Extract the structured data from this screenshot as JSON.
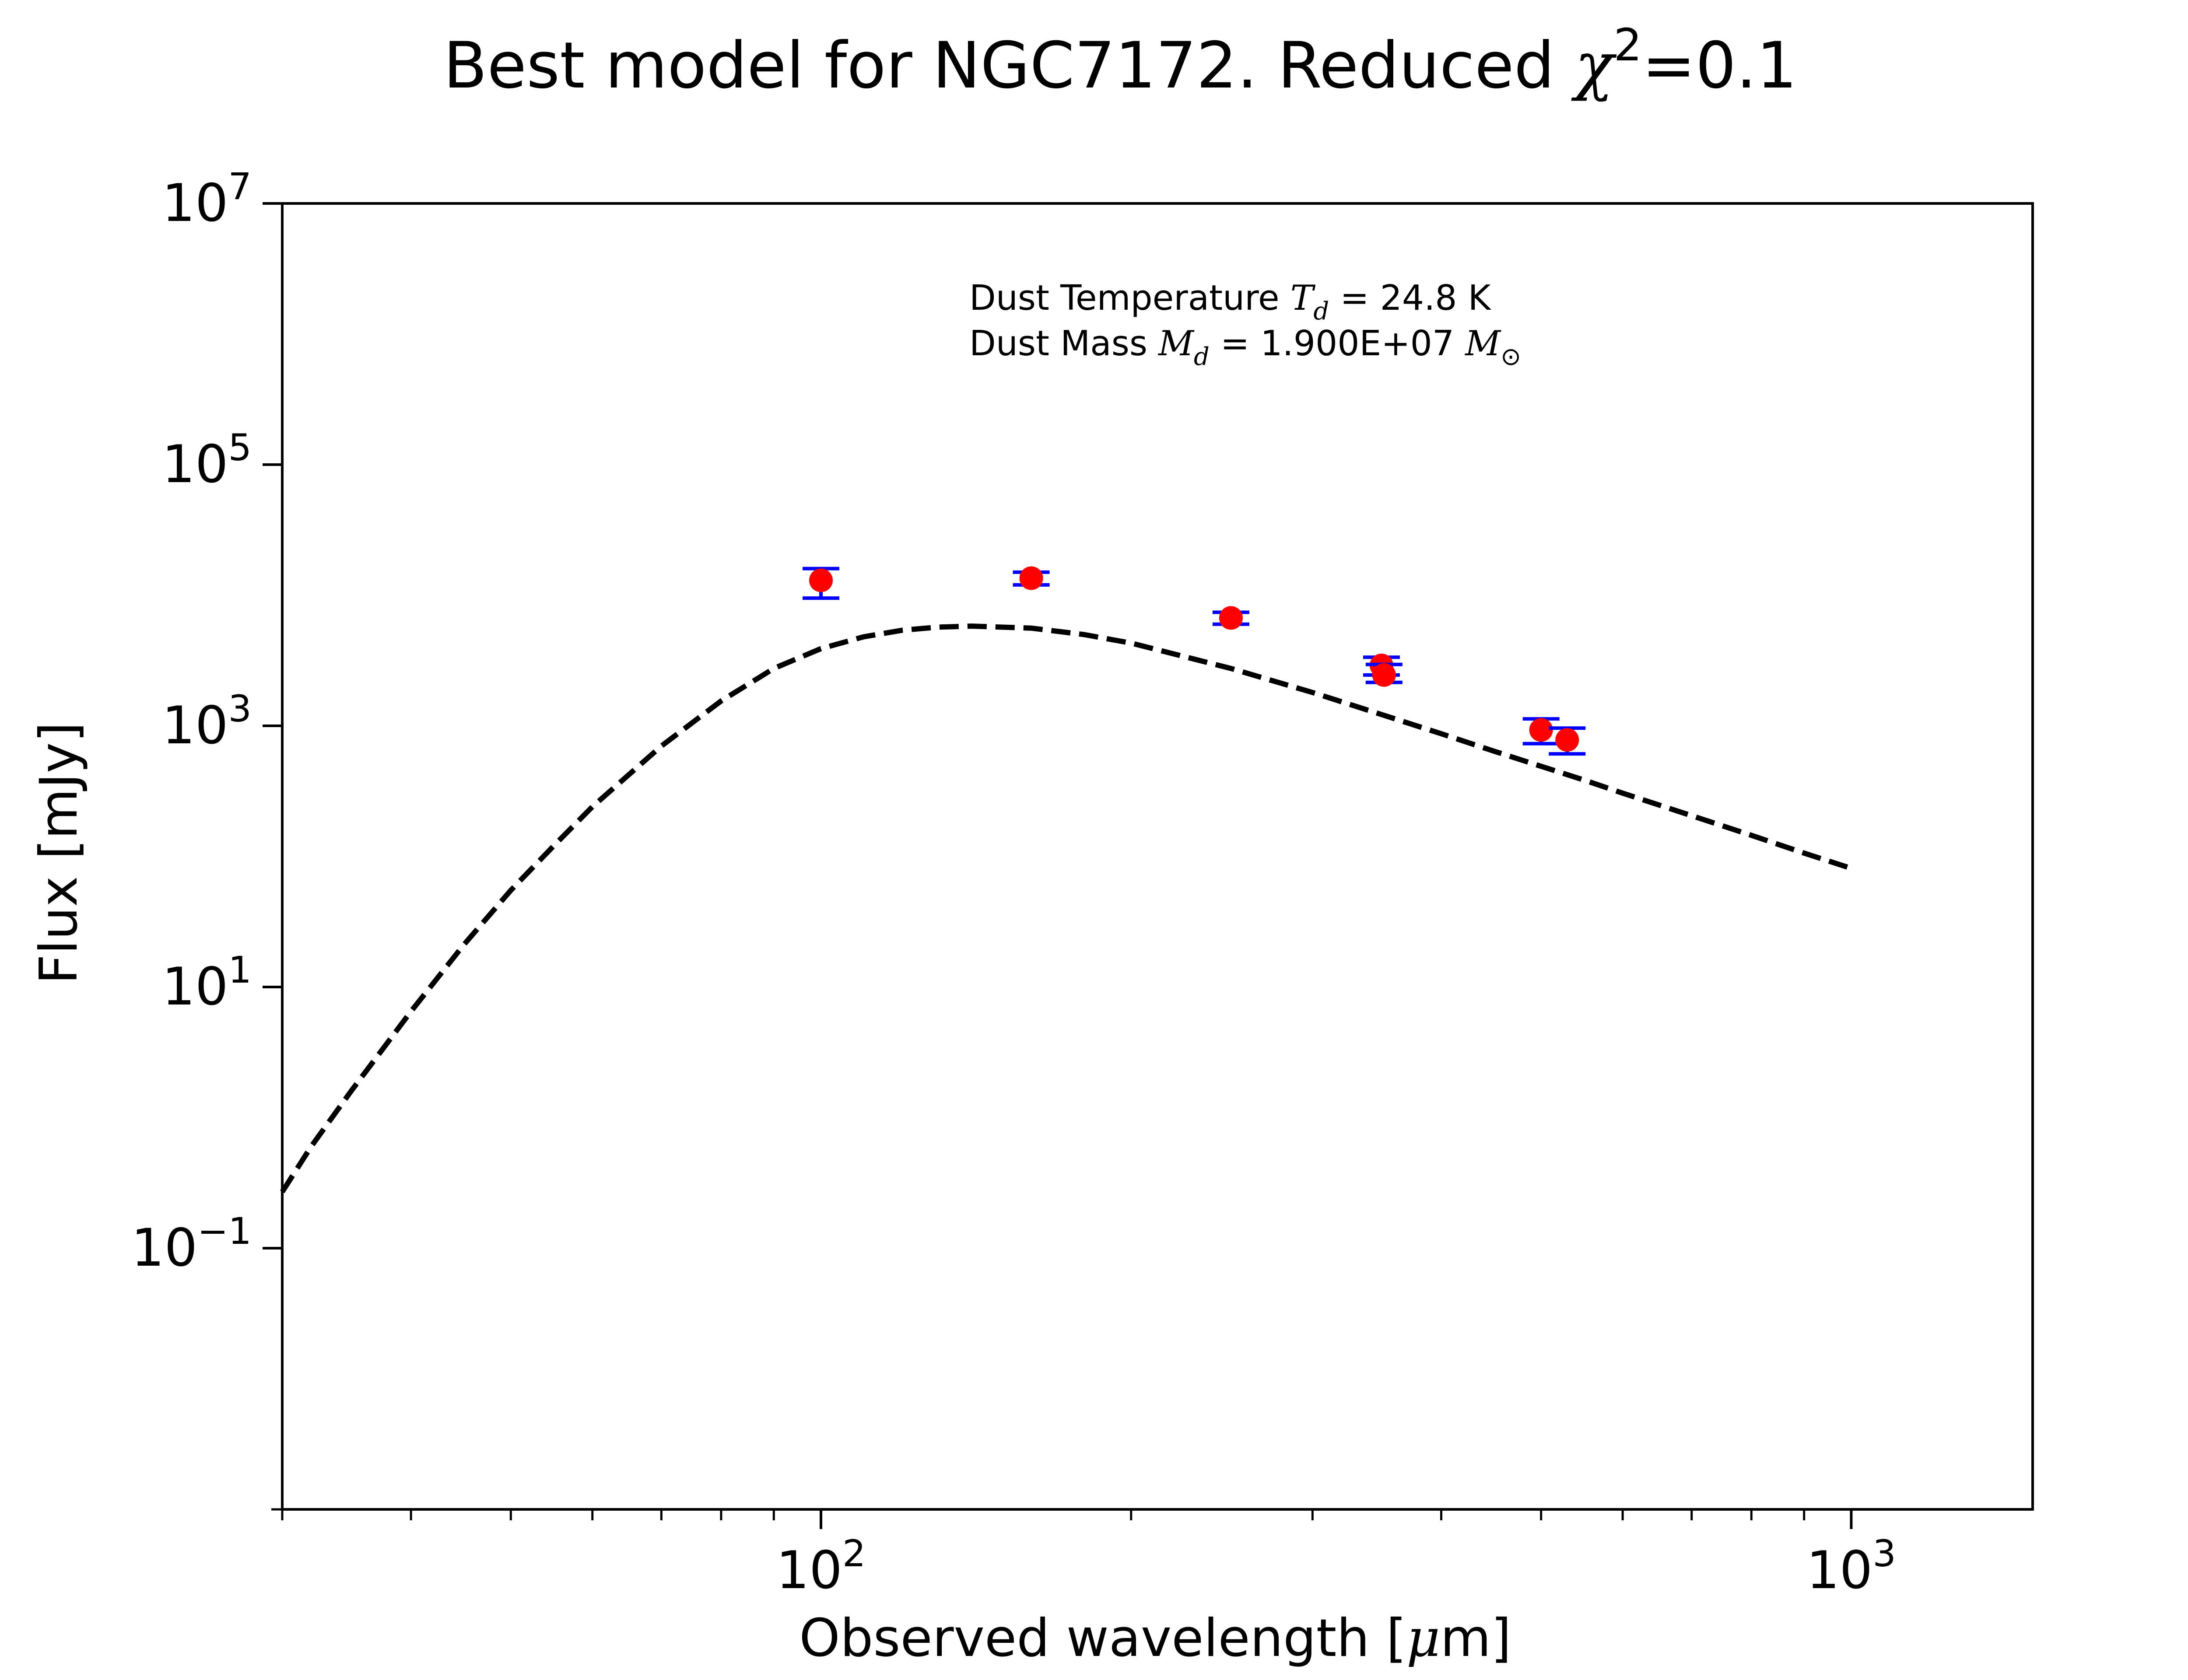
{
  "chart_data": {
    "type": "scatter",
    "title": {
      "main": "Best model for NGC7172. Reduced ",
      "chi_symbol": "χ",
      "chi_power": "2",
      "chi_value": "=0.1"
    },
    "xlabel": {
      "main": "Observed wavelength [",
      "unit_greek": "μ",
      "unit_rest": "m]"
    },
    "ylabel": "Flux [mJy]",
    "x_scale": "log",
    "y_scale": "log",
    "xlim": [
      30,
      1500
    ],
    "ylim": [
      0.001,
      10000000
    ],
    "x_major_ticks": [
      {
        "value": 100,
        "base": "10",
        "exp": "2"
      },
      {
        "value": 1000,
        "base": "10",
        "exp": "3"
      }
    ],
    "x_minor_ticks": [
      30,
      40,
      50,
      60,
      70,
      80,
      90,
      200,
      300,
      400,
      500,
      600,
      700,
      800,
      900
    ],
    "y_major_ticks": [
      {
        "value": 0.1,
        "base": "10",
        "exp": "−1"
      },
      {
        "value": 10,
        "base": "10",
        "exp": "1"
      },
      {
        "value": 1000,
        "base": "10",
        "exp": "3"
      },
      {
        "value": 100000,
        "base": "10",
        "exp": "5"
      },
      {
        "value": 10000000,
        "base": "10",
        "exp": "7"
      }
    ],
    "y_minor_ticks": [
      0.001
    ],
    "annotation": {
      "line1_prefix": "Dust Temperature ",
      "line1_symbol": "T",
      "line1_sub": "d",
      "line1_suffix": " = 24.8 K",
      "line2_prefix": "Dust Mass ",
      "line2_symbol": "M",
      "line2_sub": "d",
      "line2_mid": " = 1.900E+07 ",
      "line2_unit": "M",
      "line2_unit_sub": "⊙"
    },
    "model_curve": {
      "style": "dashed",
      "color": "#000000",
      "x": [
        30,
        32,
        35,
        40,
        45,
        50,
        55,
        60,
        70,
        80,
        90,
        100,
        110,
        120,
        130,
        140,
        160,
        180,
        200,
        250,
        300,
        350,
        400,
        450,
        500,
        550,
        600,
        700,
        800,
        900,
        1000
      ],
      "y": [
        0.27,
        0.6,
        1.6,
        6.5,
        21,
        55,
        120,
        240,
        700,
        1550,
        2750,
        3900,
        4800,
        5400,
        5700,
        5800,
        5600,
        5000,
        4300,
        2750,
        1800,
        1220,
        870,
        640,
        490,
        385,
        305,
        205,
        145,
        106,
        81
      ]
    },
    "observations": {
      "marker_color": "#ff0000",
      "errorbar_color": "#0000ff",
      "points": [
        {
          "x": 100,
          "y": 13000,
          "yerr_lo": 3500,
          "yerr_hi": 3000
        },
        {
          "x": 160,
          "y": 13500,
          "yerr_lo": 1500,
          "yerr_hi": 1500
        },
        {
          "x": 250,
          "y": 6700,
          "yerr_lo": 700,
          "yerr_hi": 700
        },
        {
          "x": 350,
          "y": 2900,
          "yerr_lo": 450,
          "yerr_hi": 450
        },
        {
          "x": 352,
          "y": 2450,
          "yerr_lo": 300,
          "yerr_hi": 500
        },
        {
          "x": 500,
          "y": 930,
          "yerr_lo": 200,
          "yerr_hi": 200
        },
        {
          "x": 530,
          "y": 780,
          "yerr_lo": 170,
          "yerr_hi": 180
        }
      ]
    }
  }
}
